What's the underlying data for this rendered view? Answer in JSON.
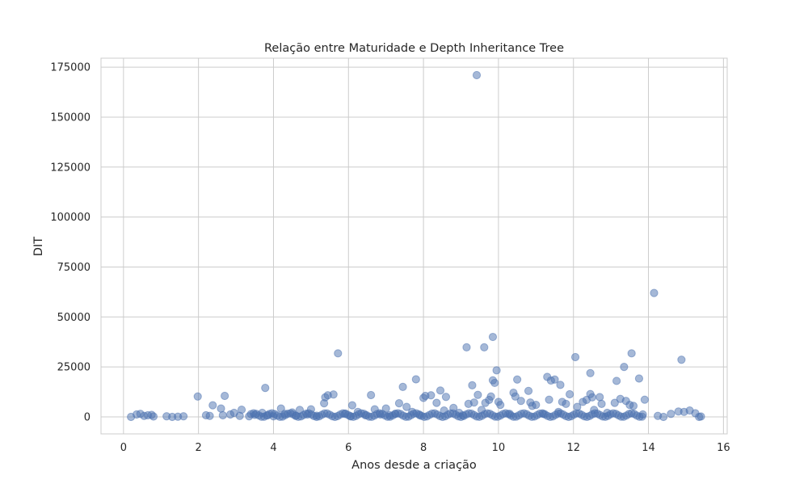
{
  "chart_data": {
    "type": "scatter",
    "title": "Relação entre Maturidade e Depth Inheritance Tree",
    "xlabel": "Anos desde a criação",
    "ylabel": "DIT",
    "xlim": [
      -0.6,
      16.1
    ],
    "ylim": [
      -8500,
      179500
    ],
    "xticks": [
      0,
      2,
      4,
      6,
      8,
      10,
      12,
      14,
      16
    ],
    "xticklabels": [
      "0",
      "2",
      "4",
      "6",
      "8",
      "10",
      "12",
      "14",
      "16"
    ],
    "yticks": [
      0,
      25000,
      50000,
      75000,
      100000,
      125000,
      150000,
      175000
    ],
    "yticklabels": [
      "0",
      "25000",
      "50000",
      "75000",
      "100000",
      "125000",
      "150000",
      "175000"
    ],
    "grid": true,
    "point_color": "#4c72b0",
    "point_alpha": 0.5,
    "series": [
      {
        "points": [
          [
            0.2,
            0
          ],
          [
            0.35,
            1200
          ],
          [
            0.45,
            1500
          ],
          [
            0.55,
            500
          ],
          [
            0.65,
            800
          ],
          [
            0.75,
            1000
          ],
          [
            0.8,
            200
          ],
          [
            1.15,
            300
          ],
          [
            1.3,
            0
          ],
          [
            1.45,
            100
          ],
          [
            1.6,
            300
          ],
          [
            1.98,
            10200
          ],
          [
            2.2,
            800
          ],
          [
            2.3,
            500
          ],
          [
            2.38,
            5800
          ],
          [
            2.6,
            4200
          ],
          [
            2.65,
            800
          ],
          [
            2.7,
            10500
          ],
          [
            2.85,
            1200
          ],
          [
            2.95,
            2000
          ],
          [
            3.1,
            500
          ],
          [
            3.15,
            3600
          ],
          [
            3.35,
            300
          ],
          [
            3.5,
            1000
          ],
          [
            3.7,
            2000
          ],
          [
            3.78,
            14500
          ],
          [
            3.85,
            800
          ],
          [
            4.0,
            300
          ],
          [
            4.2,
            4200
          ],
          [
            4.3,
            1500
          ],
          [
            4.5,
            2200
          ],
          [
            4.6,
            600
          ],
          [
            4.7,
            3500
          ],
          [
            4.9,
            1200
          ],
          [
            5.0,
            3800
          ],
          [
            5.15,
            600
          ],
          [
            5.35,
            6800
          ],
          [
            5.38,
            9800
          ],
          [
            5.45,
            10800
          ],
          [
            5.6,
            11200
          ],
          [
            5.72,
            31800
          ],
          [
            5.9,
            1500
          ],
          [
            6.05,
            400
          ],
          [
            6.1,
            5800
          ],
          [
            6.25,
            2500
          ],
          [
            6.45,
            800
          ],
          [
            6.6,
            10900
          ],
          [
            6.7,
            3800
          ],
          [
            6.85,
            1200
          ],
          [
            7.0,
            4200
          ],
          [
            7.1,
            800
          ],
          [
            7.25,
            1500
          ],
          [
            7.35,
            6800
          ],
          [
            7.45,
            15000
          ],
          [
            7.55,
            5000
          ],
          [
            7.7,
            2500
          ],
          [
            7.8,
            18800
          ],
          [
            7.9,
            800
          ],
          [
            8.0,
            9500
          ],
          [
            8.05,
            10500
          ],
          [
            8.2,
            10800
          ],
          [
            8.35,
            7000
          ],
          [
            8.45,
            13200
          ],
          [
            8.55,
            3200
          ],
          [
            8.6,
            10000
          ],
          [
            8.8,
            4500
          ],
          [
            8.95,
            2000
          ],
          [
            9.05,
            800
          ],
          [
            9.15,
            34800
          ],
          [
            9.2,
            6500
          ],
          [
            9.3,
            15800
          ],
          [
            9.35,
            7200
          ],
          [
            9.42,
            171000
          ],
          [
            9.45,
            11000
          ],
          [
            9.55,
            3500
          ],
          [
            9.62,
            34800
          ],
          [
            9.65,
            7000
          ],
          [
            9.75,
            8500
          ],
          [
            9.8,
            10200
          ],
          [
            9.85,
            18300
          ],
          [
            9.85,
            40000
          ],
          [
            9.9,
            17000
          ],
          [
            9.95,
            23300
          ],
          [
            10.0,
            7500
          ],
          [
            10.05,
            6000
          ],
          [
            10.3,
            1500
          ],
          [
            10.4,
            12100
          ],
          [
            10.45,
            10200
          ],
          [
            10.5,
            18700
          ],
          [
            10.6,
            8000
          ],
          [
            10.8,
            13000
          ],
          [
            10.85,
            7200
          ],
          [
            10.9,
            5500
          ],
          [
            11.0,
            6000
          ],
          [
            11.2,
            1500
          ],
          [
            11.3,
            20000
          ],
          [
            11.35,
            8600
          ],
          [
            11.4,
            18200
          ],
          [
            11.5,
            18700
          ],
          [
            11.6,
            2500
          ],
          [
            11.65,
            16000
          ],
          [
            11.7,
            7500
          ],
          [
            11.8,
            6500
          ],
          [
            11.9,
            11300
          ],
          [
            12.05,
            29900
          ],
          [
            12.1,
            5000
          ],
          [
            12.25,
            7500
          ],
          [
            12.35,
            8500
          ],
          [
            12.45,
            21900
          ],
          [
            12.45,
            11400
          ],
          [
            12.5,
            9800
          ],
          [
            12.55,
            3500
          ],
          [
            12.7,
            9900
          ],
          [
            12.75,
            6500
          ],
          [
            12.9,
            2000
          ],
          [
            13.1,
            7000
          ],
          [
            13.15,
            18000
          ],
          [
            13.25,
            9000
          ],
          [
            13.35,
            25000
          ],
          [
            13.4,
            8000
          ],
          [
            13.5,
            6000
          ],
          [
            13.55,
            31800
          ],
          [
            13.6,
            5500
          ],
          [
            13.75,
            19200
          ],
          [
            13.85,
            1200
          ],
          [
            13.9,
            8600
          ],
          [
            14.15,
            62000
          ],
          [
            14.25,
            500
          ],
          [
            14.4,
            0
          ],
          [
            14.6,
            1500
          ],
          [
            14.8,
            2700
          ],
          [
            14.88,
            28600
          ],
          [
            14.95,
            2500
          ],
          [
            15.1,
            3200
          ],
          [
            15.25,
            1800
          ],
          [
            15.35,
            0
          ],
          [
            15.4,
            200
          ]
        ]
      }
    ]
  }
}
